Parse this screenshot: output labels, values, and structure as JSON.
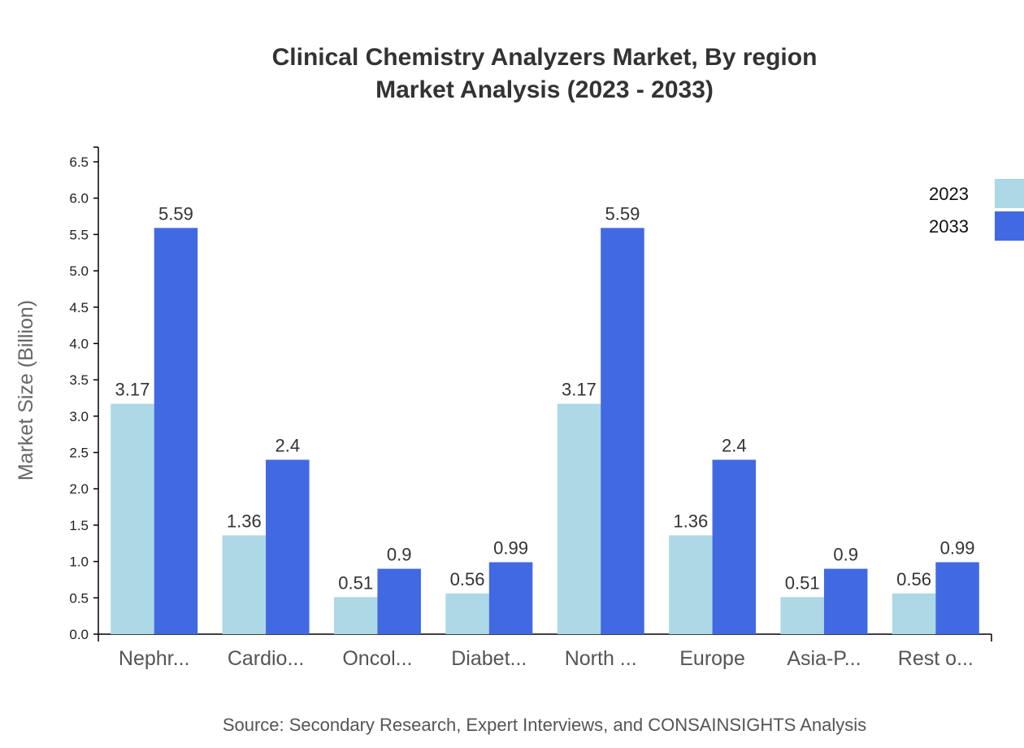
{
  "chart_data": {
    "type": "bar",
    "title": "Clinical Chemistry Analyzers Market, By region",
    "subtitle": "Market Analysis (2023 - 2033)",
    "xlabel": "",
    "ylabel": "Market Size (Billion)",
    "ylim": [
      0,
      6.7
    ],
    "yticks": [
      "0.0",
      "0.5",
      "1.0",
      "1.5",
      "2.0",
      "2.5",
      "3.0",
      "3.5",
      "4.0",
      "4.5",
      "5.0",
      "5.5",
      "6.0",
      "6.5"
    ],
    "grid": false,
    "legend_position": "top-right",
    "categories": [
      "Nephr...",
      "Cardio...",
      "Oncol...",
      "Diabet...",
      "North ...",
      "Europe",
      "Asia-P...",
      "Rest o..."
    ],
    "series": [
      {
        "name": "2023",
        "color": "#add8e6",
        "values": [
          3.17,
          1.36,
          0.51,
          0.56,
          3.17,
          1.36,
          0.51,
          0.56
        ]
      },
      {
        "name": "2033",
        "color": "#4169e1",
        "values": [
          5.59,
          2.4,
          0.9,
          0.99,
          5.59,
          2.4,
          0.9,
          0.99
        ]
      }
    ],
    "source": "Source: Secondary Research, Expert Interviews, and CONSAINSIGHTS Analysis"
  }
}
